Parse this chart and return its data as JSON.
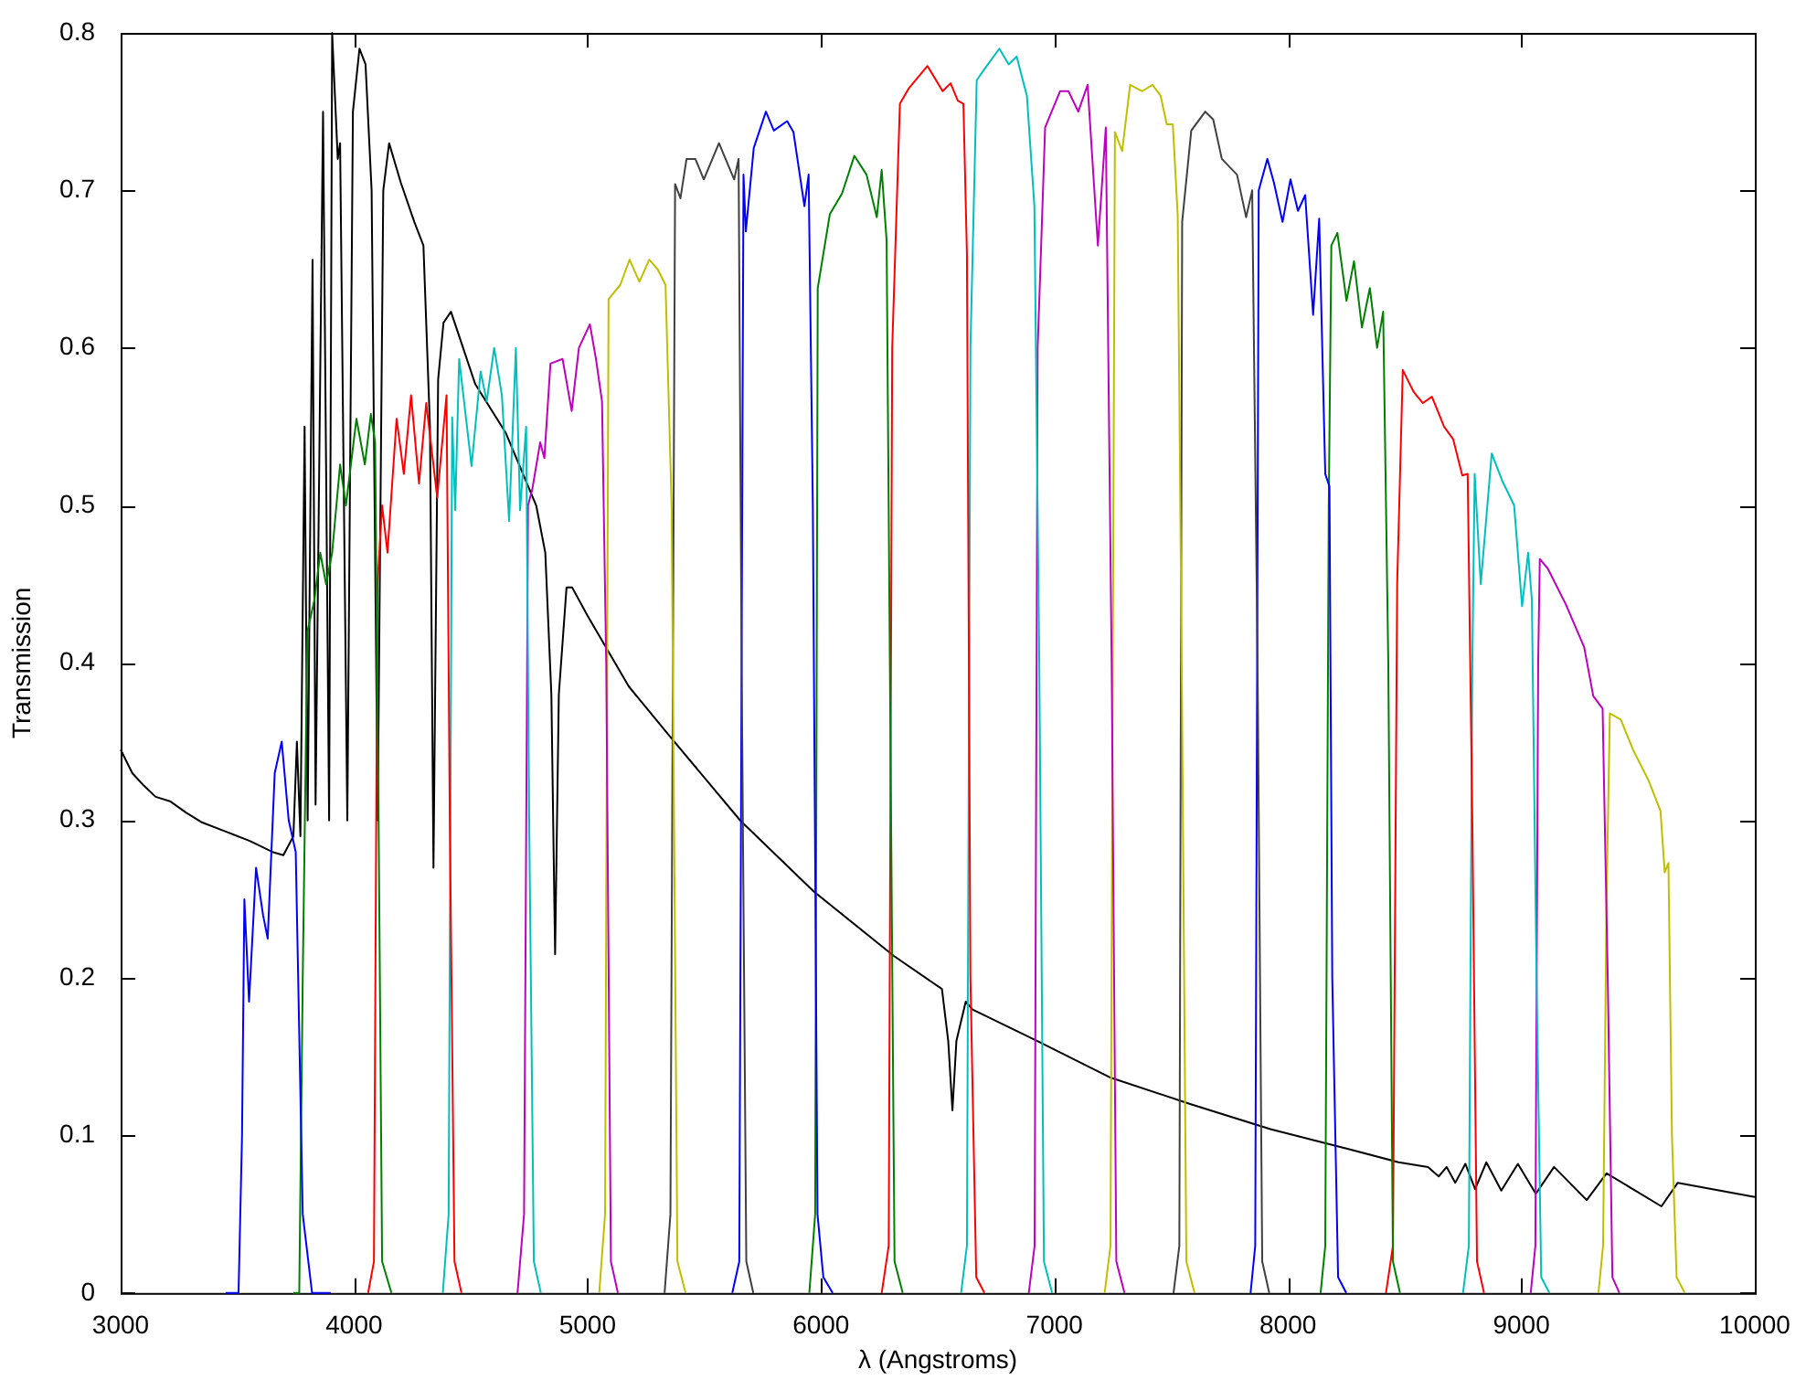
{
  "chart_data": {
    "type": "line",
    "xlabel": "λ (Angstroms)",
    "ylabel": "Transmission",
    "xlim": [
      3000,
      10000
    ],
    "ylim": [
      0,
      0.8
    ],
    "xticks": [
      3000,
      4000,
      5000,
      6000,
      7000,
      8000,
      9000,
      10000
    ],
    "yticks": [
      0,
      0.1,
      0.2,
      0.3,
      0.4,
      0.5,
      0.6,
      0.7,
      0.8
    ],
    "series": [
      {
        "color": "#0000ff",
        "x": [
          3450,
          3505,
          3520,
          3530,
          3550,
          3580,
          3610,
          3630,
          3660,
          3690,
          3720,
          3750,
          3780,
          3820,
          3900
        ],
        "values": [
          0,
          0,
          0.1,
          0.25,
          0.185,
          0.27,
          0.24,
          0.225,
          0.33,
          0.35,
          0.3,
          0.28,
          0.05,
          0,
          0
        ]
      },
      {
        "color": "#008000",
        "x": [
          3740,
          3765,
          3780,
          3800,
          3830,
          3855,
          3880,
          3906,
          3940,
          3965,
          4010,
          4046,
          4072,
          4090,
          4105,
          4120,
          4160
        ],
        "values": [
          0,
          0,
          0.2,
          0.42,
          0.44,
          0.47,
          0.45,
          0.47,
          0.526,
          0.5,
          0.555,
          0.526,
          0.558,
          0.54,
          0.3,
          0.02,
          0
        ]
      },
      {
        "color": "#ff0000",
        "x": [
          4060,
          4085,
          4100,
          4120,
          4143,
          4182,
          4213,
          4244,
          4278,
          4309,
          4356,
          4396,
          4410,
          4430,
          4460
        ],
        "values": [
          0,
          0.02,
          0.45,
          0.5,
          0.47,
          0.555,
          0.52,
          0.57,
          0.514,
          0.565,
          0.505,
          0.57,
          0.3,
          0.02,
          0
        ]
      },
      {
        "color": "#00bfbf",
        "x": [
          4380,
          4405,
          4420,
          4433,
          4450,
          4503,
          4542,
          4568,
          4600,
          4633,
          4664,
          4693,
          4711,
          4737,
          4750,
          4770,
          4800
        ],
        "values": [
          0,
          0.05,
          0.556,
          0.497,
          0.593,
          0.525,
          0.585,
          0.566,
          0.6,
          0.57,
          0.49,
          0.6,
          0.497,
          0.55,
          0.3,
          0.02,
          0
        ]
      },
      {
        "color": "#bf00bf",
        "x": [
          4700,
          4728,
          4745,
          4763,
          4797,
          4815,
          4841,
          4893,
          4932,
          4963,
          5010,
          5036,
          5062,
          5080,
          5100,
          5130
        ],
        "values": [
          0,
          0.05,
          0.5,
          0.51,
          0.54,
          0.53,
          0.59,
          0.593,
          0.56,
          0.6,
          0.615,
          0.593,
          0.566,
          0.4,
          0.02,
          0
        ]
      },
      {
        "color": "#bfbf00",
        "x": [
          5050,
          5075,
          5090,
          5140,
          5180,
          5222,
          5264,
          5300,
          5334,
          5360,
          5385,
          5420
        ],
        "values": [
          0,
          0.05,
          0.631,
          0.64,
          0.656,
          0.642,
          0.656,
          0.65,
          0.64,
          0.5,
          0.02,
          0
        ]
      },
      {
        "color": "#404040",
        "x": [
          5330,
          5355,
          5375,
          5398,
          5424,
          5462,
          5498,
          5563,
          5628,
          5647,
          5660,
          5680,
          5710
        ],
        "values": [
          0,
          0.05,
          0.704,
          0.695,
          0.72,
          0.72,
          0.707,
          0.73,
          0.707,
          0.72,
          0.4,
          0.02,
          0
        ]
      },
      {
        "color": "#0000ff",
        "x": [
          5620,
          5650,
          5668,
          5678,
          5712,
          5764,
          5798,
          5855,
          5882,
          5929,
          5947,
          5965,
          5985,
          6010,
          6050
        ],
        "values": [
          0,
          0.02,
          0.71,
          0.674,
          0.727,
          0.75,
          0.738,
          0.744,
          0.737,
          0.69,
          0.71,
          0.5,
          0.05,
          0.01,
          0
        ]
      },
      {
        "color": "#008000",
        "x": [
          5950,
          5975,
          5986,
          6038,
          6090,
          6143,
          6195,
          6239,
          6260,
          6281,
          6295,
          6315,
          6350
        ],
        "values": [
          0,
          0.05,
          0.638,
          0.685,
          0.698,
          0.722,
          0.71,
          0.683,
          0.713,
          0.668,
          0.4,
          0.02,
          0
        ]
      },
      {
        "color": "#ff0000",
        "x": [
          6260,
          6290,
          6305,
          6338,
          6377,
          6456,
          6521,
          6555,
          6586,
          6610,
          6625,
          6640,
          6665,
          6700
        ],
        "values": [
          0,
          0.03,
          0.6,
          0.755,
          0.765,
          0.779,
          0.763,
          0.768,
          0.757,
          0.755,
          0.66,
          0.2,
          0.01,
          0
        ]
      },
      {
        "color": "#00bfbf",
        "x": [
          6600,
          6625,
          6640,
          6667,
          6700,
          6764,
          6804,
          6838,
          6882,
          6914,
          6935,
          6955,
          6990
        ],
        "values": [
          0,
          0.03,
          0.6,
          0.77,
          0.777,
          0.79,
          0.78,
          0.785,
          0.76,
          0.69,
          0.4,
          0.02,
          0
        ]
      },
      {
        "color": "#bf00bf",
        "x": [
          6890,
          6915,
          6928,
          6935,
          6960,
          7024,
          7060,
          7102,
          7142,
          7186,
          7220,
          7245,
          7265,
          7300
        ],
        "values": [
          0,
          0.03,
          0.6,
          0.63,
          0.74,
          0.763,
          0.763,
          0.75,
          0.767,
          0.665,
          0.74,
          0.4,
          0.02,
          0
        ]
      },
      {
        "color": "#bfbf00",
        "x": [
          7215,
          7240,
          7259,
          7290,
          7324,
          7376,
          7420,
          7455,
          7481,
          7507,
          7528,
          7545,
          7565,
          7600
        ],
        "values": [
          0,
          0.03,
          0.737,
          0.725,
          0.767,
          0.763,
          0.767,
          0.76,
          0.742,
          0.742,
          0.684,
          0.4,
          0.02,
          0
        ]
      },
      {
        "color": "#404040",
        "x": [
          7510,
          7535,
          7547,
          7586,
          7646,
          7680,
          7717,
          7782,
          7821,
          7847,
          7870,
          7890,
          7920
        ],
        "values": [
          0,
          0.03,
          0.68,
          0.738,
          0.75,
          0.745,
          0.72,
          0.71,
          0.683,
          0.7,
          0.4,
          0.02,
          0
        ]
      },
      {
        "color": "#0000ff",
        "x": [
          7840,
          7860,
          7875,
          7912,
          7940,
          7977,
          8011,
          8043,
          8074,
          8108,
          8134,
          8160,
          8178,
          8190,
          8215,
          8250
        ],
        "values": [
          0,
          0.03,
          0.7,
          0.72,
          0.705,
          0.68,
          0.707,
          0.687,
          0.697,
          0.621,
          0.682,
          0.52,
          0.512,
          0.2,
          0.01,
          0
        ]
      },
      {
        "color": "#008000",
        "x": [
          8140,
          8160,
          8175,
          8186,
          8212,
          8251,
          8283,
          8317,
          8351,
          8382,
          8408,
          8430,
          8450,
          8480
        ],
        "values": [
          0,
          0.03,
          0.5,
          0.665,
          0.673,
          0.63,
          0.655,
          0.613,
          0.638,
          0.6,
          0.623,
          0.4,
          0.02,
          0
        ]
      },
      {
        "color": "#ff0000",
        "x": [
          8420,
          8450,
          8468,
          8492,
          8539,
          8578,
          8617,
          8669,
          8708,
          8747,
          8770,
          8790,
          8810,
          8840
        ],
        "values": [
          0,
          0.03,
          0.45,
          0.586,
          0.572,
          0.565,
          0.569,
          0.55,
          0.542,
          0.519,
          0.52,
          0.3,
          0.02,
          0
        ]
      },
      {
        "color": "#00bfbf",
        "x": [
          8750,
          8775,
          8790,
          8800,
          8826,
          8873,
          8917,
          8969,
          9003,
          9029,
          9045,
          9065,
          9085,
          9120
        ],
        "values": [
          0,
          0.03,
          0.4,
          0.52,
          0.45,
          0.533,
          0.516,
          0.5,
          0.436,
          0.47,
          0.44,
          0.2,
          0.01,
          0
        ]
      },
      {
        "color": "#bf00bf",
        "x": [
          9040,
          9060,
          9072,
          9079,
          9113,
          9191,
          9269,
          9308,
          9348,
          9370,
          9390,
          9420
        ],
        "values": [
          0,
          0.03,
          0.4,
          0.466,
          0.46,
          0.437,
          0.41,
          0.379,
          0.371,
          0.2,
          0.01,
          0
        ]
      },
      {
        "color": "#bfbf00",
        "x": [
          9330,
          9350,
          9365,
          9379,
          9426,
          9478,
          9543,
          9596,
          9614,
          9630,
          9645,
          9665,
          9700
        ],
        "values": [
          0,
          0.03,
          0.25,
          0.368,
          0.364,
          0.345,
          0.326,
          0.306,
          0.267,
          0.273,
          0.1,
          0.01,
          0
        ]
      },
      {
        "color": "#000000",
        "x": [
          3000,
          3050,
          3100,
          3150,
          3214,
          3280,
          3345,
          3450,
          3553,
          3650,
          3697,
          3740,
          3755,
          3770,
          3788,
          3801,
          3822,
          3835,
          3867,
          3893,
          3906,
          3930,
          3940,
          3971,
          3995,
          4023,
          4049,
          4075,
          4101,
          4125,
          4150,
          4200,
          4258,
          4297,
          4325,
          4340,
          4360,
          4383,
          4415,
          4519,
          4650,
          4780,
          4819,
          4845,
          4861,
          4877,
          4910,
          4934,
          5000,
          5177,
          5349,
          5654,
          5968,
          6312,
          6518,
          6545,
          6563,
          6580,
          6620,
          6649,
          6927,
          7236,
          7581,
          7925,
          8270,
          8474,
          8600,
          8646,
          8680,
          8717,
          8760,
          8802,
          8850,
          8914,
          8985,
          9062,
          9140,
          9280,
          9365,
          9600,
          9670,
          10000
        ],
        "values": [
          0.345,
          0.33,
          0.322,
          0.315,
          0.312,
          0.305,
          0.299,
          0.293,
          0.287,
          0.28,
          0.278,
          0.29,
          0.35,
          0.29,
          0.55,
          0.3,
          0.656,
          0.31,
          0.75,
          0.3,
          0.8,
          0.72,
          0.73,
          0.3,
          0.75,
          0.79,
          0.78,
          0.7,
          0.3,
          0.7,
          0.73,
          0.705,
          0.68,
          0.665,
          0.55,
          0.27,
          0.58,
          0.616,
          0.623,
          0.577,
          0.546,
          0.5,
          0.47,
          0.38,
          0.215,
          0.38,
          0.448,
          0.448,
          0.43,
          0.385,
          0.354,
          0.3,
          0.255,
          0.214,
          0.193,
          0.16,
          0.116,
          0.16,
          0.185,
          0.18,
          0.16,
          0.137,
          0.12,
          0.104,
          0.091,
          0.083,
          0.08,
          0.074,
          0.08,
          0.07,
          0.082,
          0.066,
          0.083,
          0.065,
          0.082,
          0.063,
          0.08,
          0.059,
          0.076,
          0.055,
          0.07,
          0.061
        ]
      }
    ]
  }
}
